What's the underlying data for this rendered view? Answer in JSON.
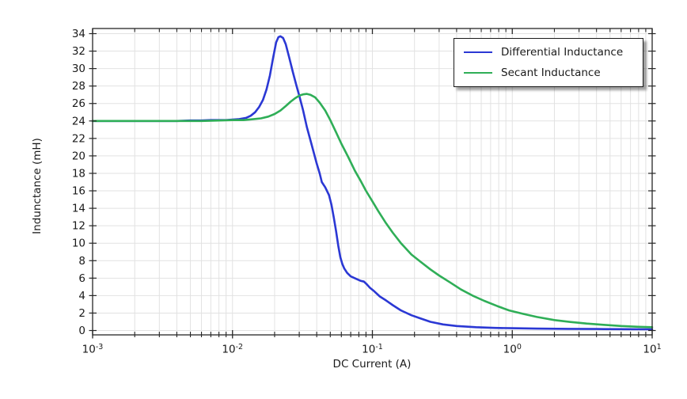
{
  "chart_data": {
    "type": "line",
    "title": "",
    "xlabel": "DC Current (A)",
    "ylabel": "Indunctance (mH)",
    "x_scale": "log",
    "xlim": [
      0.001,
      10
    ],
    "ylim": [
      0,
      34
    ],
    "y_tick_step": 2,
    "grid": true,
    "legend_position": "top-right",
    "x_major_ticks": [
      {
        "value": 0.001,
        "base": "10",
        "exp": "-3"
      },
      {
        "value": 0.01,
        "base": "10",
        "exp": "-2"
      },
      {
        "value": 0.1,
        "base": "10",
        "exp": "-1"
      },
      {
        "value": 1,
        "base": "10",
        "exp": "0"
      },
      {
        "value": 10,
        "base": "10",
        "exp": "1"
      }
    ],
    "colors": {
      "differential": "#2b38d4",
      "secant": "#2fae57",
      "grid": "#e2e2e2",
      "frame": "#262626",
      "text": "#1a1a1a",
      "background": "#ffffff"
    },
    "series": [
      {
        "name": "Differential Inductance",
        "color": "#2b38d4",
        "points": [
          [
            0.001,
            24.0
          ],
          [
            0.0015,
            24.0
          ],
          [
            0.002,
            24.0
          ],
          [
            0.003,
            24.0
          ],
          [
            0.004,
            24.0
          ],
          [
            0.005,
            24.05
          ],
          [
            0.006,
            24.05
          ],
          [
            0.007,
            24.1
          ],
          [
            0.008,
            24.1
          ],
          [
            0.009,
            24.1
          ],
          [
            0.01,
            24.15
          ],
          [
            0.011,
            24.2
          ],
          [
            0.0125,
            24.35
          ],
          [
            0.0135,
            24.6
          ],
          [
            0.0145,
            25.0
          ],
          [
            0.0155,
            25.6
          ],
          [
            0.0165,
            26.4
          ],
          [
            0.0175,
            27.6
          ],
          [
            0.0185,
            29.2
          ],
          [
            0.0195,
            31.2
          ],
          [
            0.0205,
            33.0
          ],
          [
            0.0213,
            33.6
          ],
          [
            0.022,
            33.7
          ],
          [
            0.023,
            33.5
          ],
          [
            0.024,
            32.8
          ],
          [
            0.0255,
            31.2
          ],
          [
            0.027,
            29.6
          ],
          [
            0.0285,
            28.2
          ],
          [
            0.03,
            26.9
          ],
          [
            0.032,
            25.2
          ],
          [
            0.034,
            23.3
          ],
          [
            0.0365,
            21.5
          ],
          [
            0.04,
            19.1
          ],
          [
            0.042,
            18.0
          ],
          [
            0.0435,
            17.0
          ],
          [
            0.046,
            16.4
          ],
          [
            0.049,
            15.5
          ],
          [
            0.051,
            14.4
          ],
          [
            0.053,
            12.9
          ],
          [
            0.055,
            11.4
          ],
          [
            0.057,
            9.7
          ],
          [
            0.059,
            8.4
          ],
          [
            0.061,
            7.6
          ],
          [
            0.063,
            7.1
          ],
          [
            0.066,
            6.6
          ],
          [
            0.07,
            6.2
          ],
          [
            0.076,
            5.95
          ],
          [
            0.082,
            5.7
          ],
          [
            0.087,
            5.6
          ],
          [
            0.091,
            5.3
          ],
          [
            0.096,
            4.9
          ],
          [
            0.103,
            4.5
          ],
          [
            0.113,
            3.9
          ],
          [
            0.125,
            3.45
          ],
          [
            0.14,
            2.9
          ],
          [
            0.16,
            2.3
          ],
          [
            0.19,
            1.75
          ],
          [
            0.22,
            1.4
          ],
          [
            0.26,
            1.0
          ],
          [
            0.32,
            0.7
          ],
          [
            0.4,
            0.52
          ],
          [
            0.55,
            0.38
          ],
          [
            0.75,
            0.3
          ],
          [
            1.0,
            0.26
          ],
          [
            1.5,
            0.22
          ],
          [
            2.5,
            0.19
          ],
          [
            4.0,
            0.17
          ],
          [
            6.5,
            0.15
          ],
          [
            10,
            0.14
          ]
        ]
      },
      {
        "name": "Secant Inductance",
        "color": "#2fae57",
        "points": [
          [
            0.001,
            24.0
          ],
          [
            0.002,
            24.0
          ],
          [
            0.004,
            24.0
          ],
          [
            0.006,
            24.0
          ],
          [
            0.008,
            24.05
          ],
          [
            0.01,
            24.1
          ],
          [
            0.012,
            24.1
          ],
          [
            0.014,
            24.2
          ],
          [
            0.016,
            24.3
          ],
          [
            0.018,
            24.5
          ],
          [
            0.02,
            24.8
          ],
          [
            0.022,
            25.2
          ],
          [
            0.024,
            25.7
          ],
          [
            0.026,
            26.2
          ],
          [
            0.028,
            26.6
          ],
          [
            0.03,
            26.9
          ],
          [
            0.032,
            27.05
          ],
          [
            0.034,
            27.1
          ],
          [
            0.036,
            27.0
          ],
          [
            0.039,
            26.7
          ],
          [
            0.042,
            26.1
          ],
          [
            0.046,
            25.2
          ],
          [
            0.05,
            24.1
          ],
          [
            0.055,
            22.7
          ],
          [
            0.06,
            21.4
          ],
          [
            0.067,
            19.9
          ],
          [
            0.075,
            18.3
          ],
          [
            0.082,
            17.2
          ],
          [
            0.09,
            16.0
          ],
          [
            0.1,
            14.8
          ],
          [
            0.11,
            13.7
          ],
          [
            0.125,
            12.3
          ],
          [
            0.14,
            11.2
          ],
          [
            0.16,
            10.0
          ],
          [
            0.19,
            8.7
          ],
          [
            0.22,
            7.9
          ],
          [
            0.26,
            7.0
          ],
          [
            0.3,
            6.3
          ],
          [
            0.36,
            5.5
          ],
          [
            0.43,
            4.7
          ],
          [
            0.52,
            4.0
          ],
          [
            0.63,
            3.4
          ],
          [
            0.78,
            2.8
          ],
          [
            0.95,
            2.3
          ],
          [
            1.2,
            1.9
          ],
          [
            1.5,
            1.55
          ],
          [
            2.0,
            1.2
          ],
          [
            2.6,
            0.98
          ],
          [
            3.4,
            0.8
          ],
          [
            4.5,
            0.65
          ],
          [
            6.0,
            0.52
          ],
          [
            8.0,
            0.43
          ],
          [
            10,
            0.38
          ]
        ]
      }
    ]
  }
}
